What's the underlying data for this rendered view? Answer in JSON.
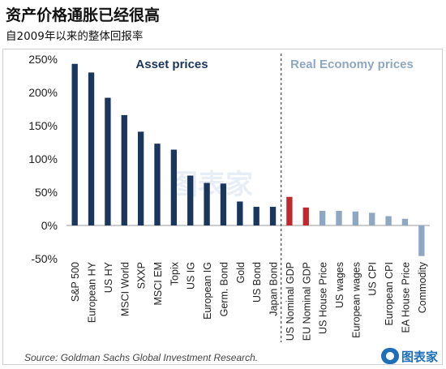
{
  "header": {
    "title": "资产价格通胀已经很高",
    "subtitle": "自2009年以来的整体回报率"
  },
  "source": "Source: Goldman Sachs Global Investment Research.",
  "watermark": "图表家",
  "logo_text": "图表家",
  "colors": {
    "asset": "#1b365d",
    "gdp": "#c0282e",
    "real": "#8ea7c2",
    "asset_label": "#1b365d",
    "real_label": "#8ea7c2",
    "divider": "#222222"
  },
  "chart_data": {
    "type": "bar",
    "title": "",
    "xlabel": "",
    "ylabel": "",
    "ylim": [
      -50,
      250
    ],
    "y_ticks": [
      "250%",
      "200%",
      "150%",
      "100%",
      "50%",
      "0%",
      "-50%"
    ],
    "y_tick_values": [
      250,
      200,
      150,
      100,
      50,
      0,
      -50
    ],
    "grid": false,
    "group_labels": [
      "Asset prices",
      "Real Economy prices"
    ],
    "categories": [
      "S&P 500",
      "European HY",
      "US HY",
      "MSCI World",
      "SXXP",
      "MSCI EM",
      "Topix",
      "US IG",
      "European IG",
      "Germ. Bond",
      "Gold",
      "US Bond",
      "Japan Bond",
      "US Nominal GDP",
      "EU Nominal GDP",
      "US House Price",
      "US wages",
      "European wages",
      "US CPI",
      "European CPI",
      "EA House Price",
      "Commodity"
    ],
    "values": [
      243,
      230,
      192,
      166,
      141,
      123,
      114,
      75,
      64,
      63,
      36,
      28,
      28,
      43,
      27,
      22,
      22,
      21,
      19,
      14,
      10,
      -46
    ],
    "groups": [
      "asset",
      "asset",
      "asset",
      "asset",
      "asset",
      "asset",
      "asset",
      "asset",
      "asset",
      "asset",
      "asset",
      "asset",
      "asset",
      "gdp",
      "gdp",
      "real",
      "real",
      "real",
      "real",
      "real",
      "real",
      "real"
    ],
    "divider_after_index": 12
  }
}
